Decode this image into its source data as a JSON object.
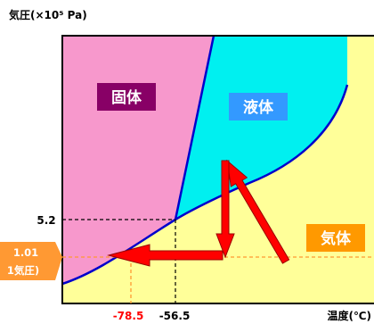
{
  "diagram": {
    "y_axis_title": "気圧(×10⁵ Pa)",
    "x_axis_title": "温度(℃)",
    "phases": {
      "solid": "固体",
      "liquid": "液体",
      "gas": "気体"
    },
    "pressure_labels": {
      "triple_point": "5.2",
      "one_atm_value": "1.01",
      "one_atm_note": "1気圧)"
    },
    "temperature_labels": {
      "sublimation": "-78.5",
      "triple_point": "-56.5"
    },
    "colors": {
      "solid": "#f798cc",
      "liquid": "#00f0f0",
      "gas": "#ffff99",
      "boundary": "#0000cc",
      "arrow": "#ff0000",
      "solid_label_bg": "#880066",
      "liquid_label_bg": "#3399ff",
      "gas_label_bg": "#ff9900",
      "atm_box": "#ff9933"
    }
  }
}
